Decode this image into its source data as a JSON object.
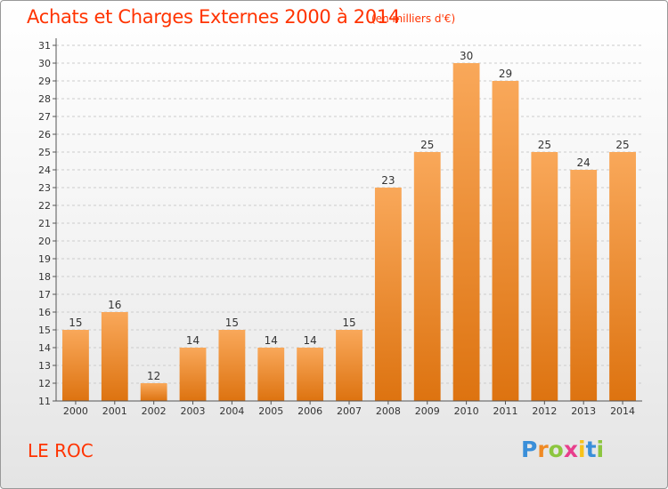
{
  "header": {
    "title": "Achats et Charges Externes 2000 à 2014",
    "unit": "(en milliers d'€)"
  },
  "footer": {
    "commune": "LE ROC",
    "logo_letters": [
      "P",
      "r",
      "o",
      "x",
      "i",
      "t",
      "i"
    ],
    "logo_colors": [
      "#3a8fd9",
      "#f08a24",
      "#8cc63f",
      "#e83e8c",
      "#f7c21a",
      "#3a8fd9",
      "#8cc63f"
    ]
  },
  "chart_data": {
    "type": "bar",
    "title": "Achats et Charges Externes 2000 à 2014",
    "subtitle": "(en milliers d'€)",
    "categories": [
      "2000",
      "2001",
      "2002",
      "2003",
      "2004",
      "2005",
      "2006",
      "2007",
      "2008",
      "2009",
      "2010",
      "2011",
      "2012",
      "2013",
      "2014"
    ],
    "values": [
      15,
      16,
      12,
      14,
      15,
      14,
      14,
      15,
      23,
      25,
      30,
      29,
      25,
      24,
      25
    ],
    "ylim": [
      11,
      31
    ],
    "yticks": [
      11,
      12,
      13,
      14,
      15,
      16,
      17,
      18,
      19,
      20,
      21,
      22,
      23,
      24,
      25,
      26,
      27,
      28,
      29,
      30,
      31
    ],
    "grid": true,
    "bar_color": "#f08a24",
    "bar_color_top": "#f9a85a",
    "bar_color_bottom": "#dd7310"
  }
}
